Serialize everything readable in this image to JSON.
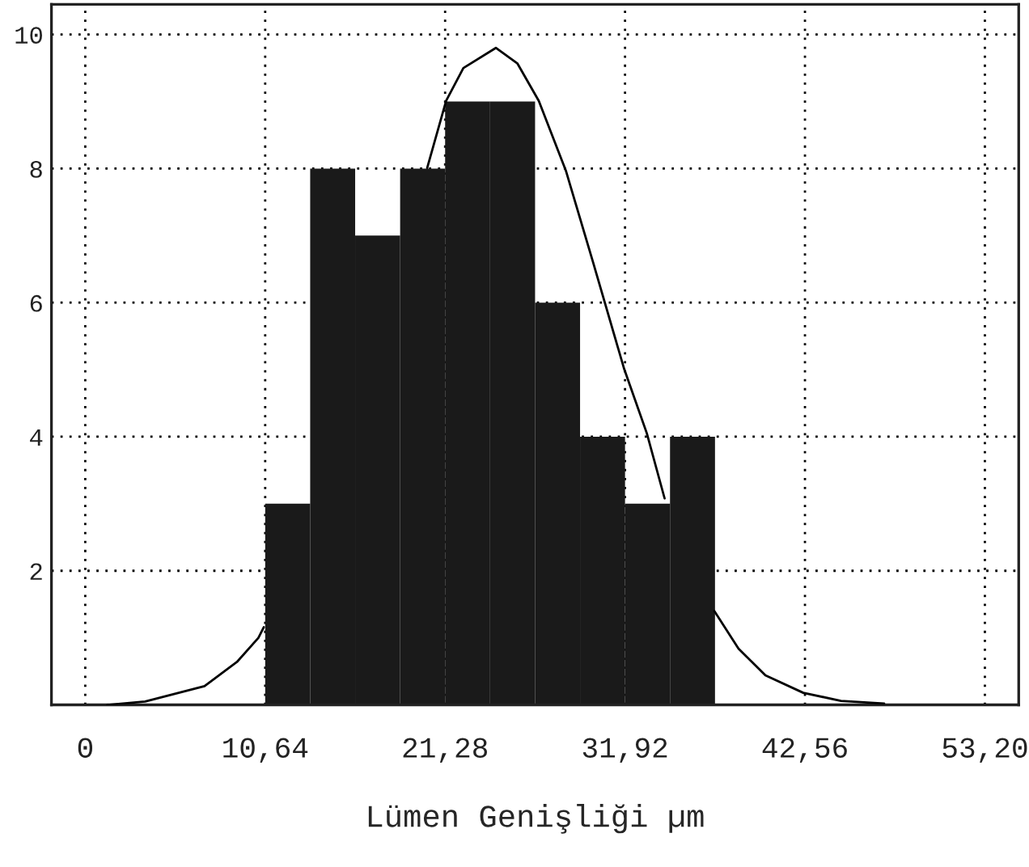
{
  "chart_data": {
    "type": "histogram",
    "xlabel": "Lümen Genişliği µm",
    "bins": [
      10.64,
      13.3,
      15.96,
      18.62,
      21.28,
      23.94,
      26.6,
      29.26,
      31.92,
      34.58,
      37.24
    ],
    "values": [
      3,
      8,
      7,
      8,
      9,
      9,
      6,
      4,
      3,
      4
    ],
    "color": "#1a1a1a",
    "series": [
      {
        "type": "line",
        "color": "#000000",
        "x": [
          1.3,
          3.54,
          7.05,
          8.97,
          10.24,
          10.56,
          15.0,
          20.22,
          21.34,
          22.36,
          24.28,
          25.55,
          26.82,
          28.42,
          30.02,
          31.87,
          33.21,
          34.26,
          35.7,
          37.2,
          38.63,
          40.22,
          42.46,
          44.69,
          47.24
        ],
        "values": [
          0,
          0.05,
          0.28,
          0.64,
          1.0,
          1.16,
          null,
          8.01,
          9.01,
          9.5,
          9.8,
          9.57,
          9.01,
          7.97,
          6.61,
          5.01,
          4.05,
          3.08,
          null,
          1.4,
          0.84,
          0.44,
          0.18,
          0.06,
          0.02
        ]
      }
    ],
    "xlim": [
      -2.0,
      55.2
    ],
    "ylim": [
      0,
      10.45
    ],
    "xticks": [
      {
        "value": 0,
        "label": "0"
      },
      {
        "value": 10.64,
        "label": "10,64"
      },
      {
        "value": 21.28,
        "label": "21,28"
      },
      {
        "value": 31.92,
        "label": "31,92"
      },
      {
        "value": 42.56,
        "label": "42,56"
      },
      {
        "value": 53.2,
        "label": "53,20"
      }
    ],
    "yticks": [
      {
        "value": 0,
        "label": null
      },
      2,
      4,
      6,
      8,
      10
    ],
    "grid": true
  }
}
